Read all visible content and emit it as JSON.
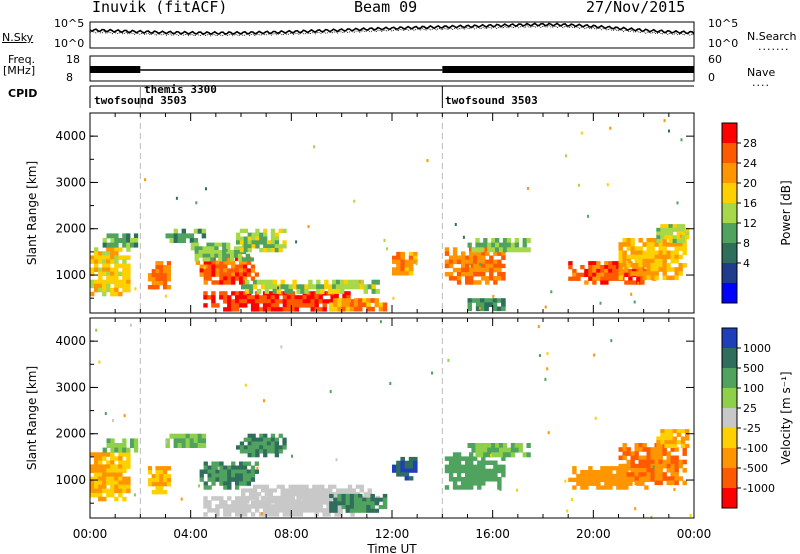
{
  "header": {
    "station": "Inuvik (fitACF)",
    "beam": "Beam 09",
    "date": "27/Nov/2015"
  },
  "noise_panel": {
    "left_label": "N.Sky",
    "right_label": "N.Search",
    "left_ticks": [
      "10^5",
      "10^0"
    ],
    "right_ticks": [
      "10^5",
      "10^0"
    ]
  },
  "freq_panel": {
    "left_label_1": "Freq.",
    "left_label_2": "[MHz]",
    "right_label": "Nave",
    "left_ticks": [
      "18",
      "8"
    ],
    "right_ticks": [
      "60",
      "0"
    ]
  },
  "cpid_panel": {
    "label": "CPID",
    "modes": [
      {
        "name": "twofsound 3503",
        "start_hour": 0
      },
      {
        "name": "themis 3300",
        "start_hour": 2
      },
      {
        "name": "twofsound 3503",
        "start_hour": 14
      }
    ]
  },
  "chart_data": [
    {
      "type": "heatmap",
      "panel": "power",
      "ylabel": "Slant Range [km]",
      "ylim": [
        180,
        4500
      ],
      "y_ticks": [
        "1000",
        "2000",
        "3000",
        "4000"
      ],
      "x_ticks": [
        "00:00",
        "04:00",
        "08:00",
        "12:00",
        "16:00",
        "20:00",
        "00:00"
      ],
      "xlim_hours": [
        0,
        24
      ],
      "mode_change_hours": [
        2,
        14
      ],
      "colorbar": {
        "label": "Power [dB]",
        "ticks": [
          "28",
          "24",
          "20",
          "16",
          "12",
          "8",
          "4"
        ],
        "colors": [
          "#ff0000",
          "#ff5a00",
          "#ff9500",
          "#ffd000",
          "#a6d84a",
          "#4fa35e",
          "#2f6e5c",
          "#1f3d8c",
          "#0000ff"
        ]
      },
      "regions": [
        {
          "t0": 0.0,
          "t1": 1.6,
          "r0": 550,
          "r1": 1600,
          "value": 18
        },
        {
          "t0": 0.5,
          "t1": 1.9,
          "r0": 1600,
          "r1": 1900,
          "value": 10
        },
        {
          "t0": 2.3,
          "t1": 3.2,
          "r0": 700,
          "r1": 1300,
          "value": 24
        },
        {
          "t0": 3.0,
          "t1": 4.6,
          "r0": 1700,
          "r1": 2000,
          "value": 10
        },
        {
          "t0": 4.2,
          "t1": 6.7,
          "r0": 800,
          "r1": 1400,
          "value": 26
        },
        {
          "t0": 4.0,
          "t1": 6.5,
          "r0": 1300,
          "r1": 1700,
          "value": 12
        },
        {
          "t0": 5.8,
          "t1": 7.8,
          "r0": 1500,
          "r1": 2000,
          "value": 14
        },
        {
          "t0": 4.5,
          "t1": 10.5,
          "r0": 220,
          "r1": 650,
          "value": 28
        },
        {
          "t0": 6.0,
          "t1": 11.5,
          "r0": 600,
          "r1": 900,
          "value": 14
        },
        {
          "t0": 9.5,
          "t1": 11.8,
          "r0": 220,
          "r1": 500,
          "value": 22
        },
        {
          "t0": 12.0,
          "t1": 13.0,
          "r0": 1000,
          "r1": 1500,
          "value": 22
        },
        {
          "t0": 14.1,
          "t1": 16.5,
          "r0": 800,
          "r1": 1600,
          "value": 24
        },
        {
          "t0": 15.0,
          "t1": 17.5,
          "r0": 1500,
          "r1": 1800,
          "value": 12
        },
        {
          "t0": 15.0,
          "t1": 16.5,
          "r0": 230,
          "r1": 500,
          "value": 8
        },
        {
          "t0": 19.0,
          "t1": 22.5,
          "r0": 800,
          "r1": 1300,
          "value": 26
        },
        {
          "t0": 21.0,
          "t1": 23.7,
          "r0": 900,
          "r1": 1800,
          "value": 20
        },
        {
          "t0": 22.5,
          "t1": 23.8,
          "r0": 1700,
          "r1": 2100,
          "value": 14
        }
      ]
    },
    {
      "type": "heatmap",
      "panel": "velocity",
      "ylabel": "Slant Range [km]",
      "xlabel": "Time UT",
      "ylim": [
        180,
        4500
      ],
      "y_ticks": [
        "1000",
        "2000",
        "3000",
        "4000"
      ],
      "x_ticks": [
        "00:00",
        "04:00",
        "08:00",
        "12:00",
        "16:00",
        "20:00",
        "00:00"
      ],
      "xlim_hours": [
        0,
        24
      ],
      "mode_change_hours": [
        2,
        14
      ],
      "colorbar": {
        "label": "Velocity [m s⁻¹]",
        "ticks": [
          "1000",
          "500",
          "100",
          "25",
          "-25",
          "-100",
          "-500",
          "-1000"
        ],
        "colors": [
          "#1f3fb8",
          "#2f6e5c",
          "#4fa35e",
          "#8ed04a",
          "#c8c8c8",
          "#ffd000",
          "#ff9500",
          "#ff5a00",
          "#ff0000"
        ]
      },
      "regions": [
        {
          "t0": 0.0,
          "t1": 1.6,
          "r0": 550,
          "r1": 1600,
          "value": -100
        },
        {
          "t0": 0.5,
          "t1": 1.9,
          "r0": 1600,
          "r1": 1900,
          "value": 100
        },
        {
          "t0": 2.3,
          "t1": 3.2,
          "r0": 700,
          "r1": 1300,
          "value": -100
        },
        {
          "t0": 3.0,
          "t1": 4.6,
          "r0": 1700,
          "r1": 2000,
          "value": 100
        },
        {
          "t0": 4.2,
          "t1": 6.7,
          "r0": 800,
          "r1": 1400,
          "value": 500
        },
        {
          "t0": 5.8,
          "t1": 7.8,
          "r0": 1500,
          "r1": 2000,
          "value": 500
        },
        {
          "t0": 4.5,
          "t1": 10.5,
          "r0": 220,
          "r1": 650,
          "value": 0
        },
        {
          "t0": 6.0,
          "t1": 11.5,
          "r0": 500,
          "r1": 900,
          "value": 0
        },
        {
          "t0": 9.5,
          "t1": 11.8,
          "r0": 300,
          "r1": 700,
          "value": 500
        },
        {
          "t0": 12.0,
          "t1": 13.0,
          "r0": 1000,
          "r1": 1500,
          "value": 1000
        },
        {
          "t0": 14.1,
          "t1": 16.5,
          "r0": 800,
          "r1": 1600,
          "value": 300
        },
        {
          "t0": 15.0,
          "t1": 17.5,
          "r0": 1500,
          "r1": 1800,
          "value": 100
        },
        {
          "t0": 19.0,
          "t1": 22.5,
          "r0": 800,
          "r1": 1300,
          "value": -300
        },
        {
          "t0": 21.0,
          "t1": 23.7,
          "r0": 900,
          "r1": 1800,
          "value": -500
        },
        {
          "t0": 22.5,
          "t1": 23.8,
          "r0": 1700,
          "r1": 2100,
          "value": -100
        }
      ]
    }
  ]
}
